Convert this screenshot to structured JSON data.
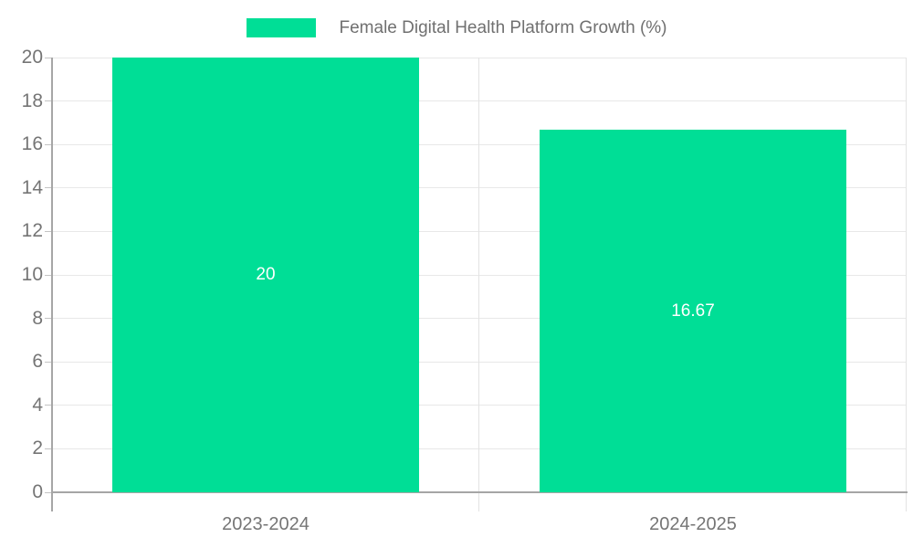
{
  "legend": {
    "label": "Female Digital Health Platform Growth (%)"
  },
  "chart_data": {
    "type": "bar",
    "title": "Female Digital Health Platform Growth (%)",
    "categories": [
      "2023-2024",
      "2024-2025"
    ],
    "values": [
      20,
      16.67
    ],
    "data_labels": [
      "20",
      "16.67"
    ],
    "xlabel": "",
    "ylabel": "",
    "ylim": [
      0,
      20
    ],
    "yticks": [
      0,
      2,
      4,
      6,
      8,
      10,
      12,
      14,
      16,
      18,
      20
    ],
    "grid": true,
    "legend_position": "top",
    "data_label_position": "inside-center"
  },
  "colors": {
    "bar": "#00DE96",
    "data_label_text": "#ffffff",
    "axis_line": "#a6a6a6",
    "grid_line": "#e8e8e8",
    "split_line": "#e3e3e3",
    "tick_mark": "#c4c4c4",
    "tick_text": "#757575",
    "legend_text": "#707070",
    "background": "#ffffff"
  }
}
